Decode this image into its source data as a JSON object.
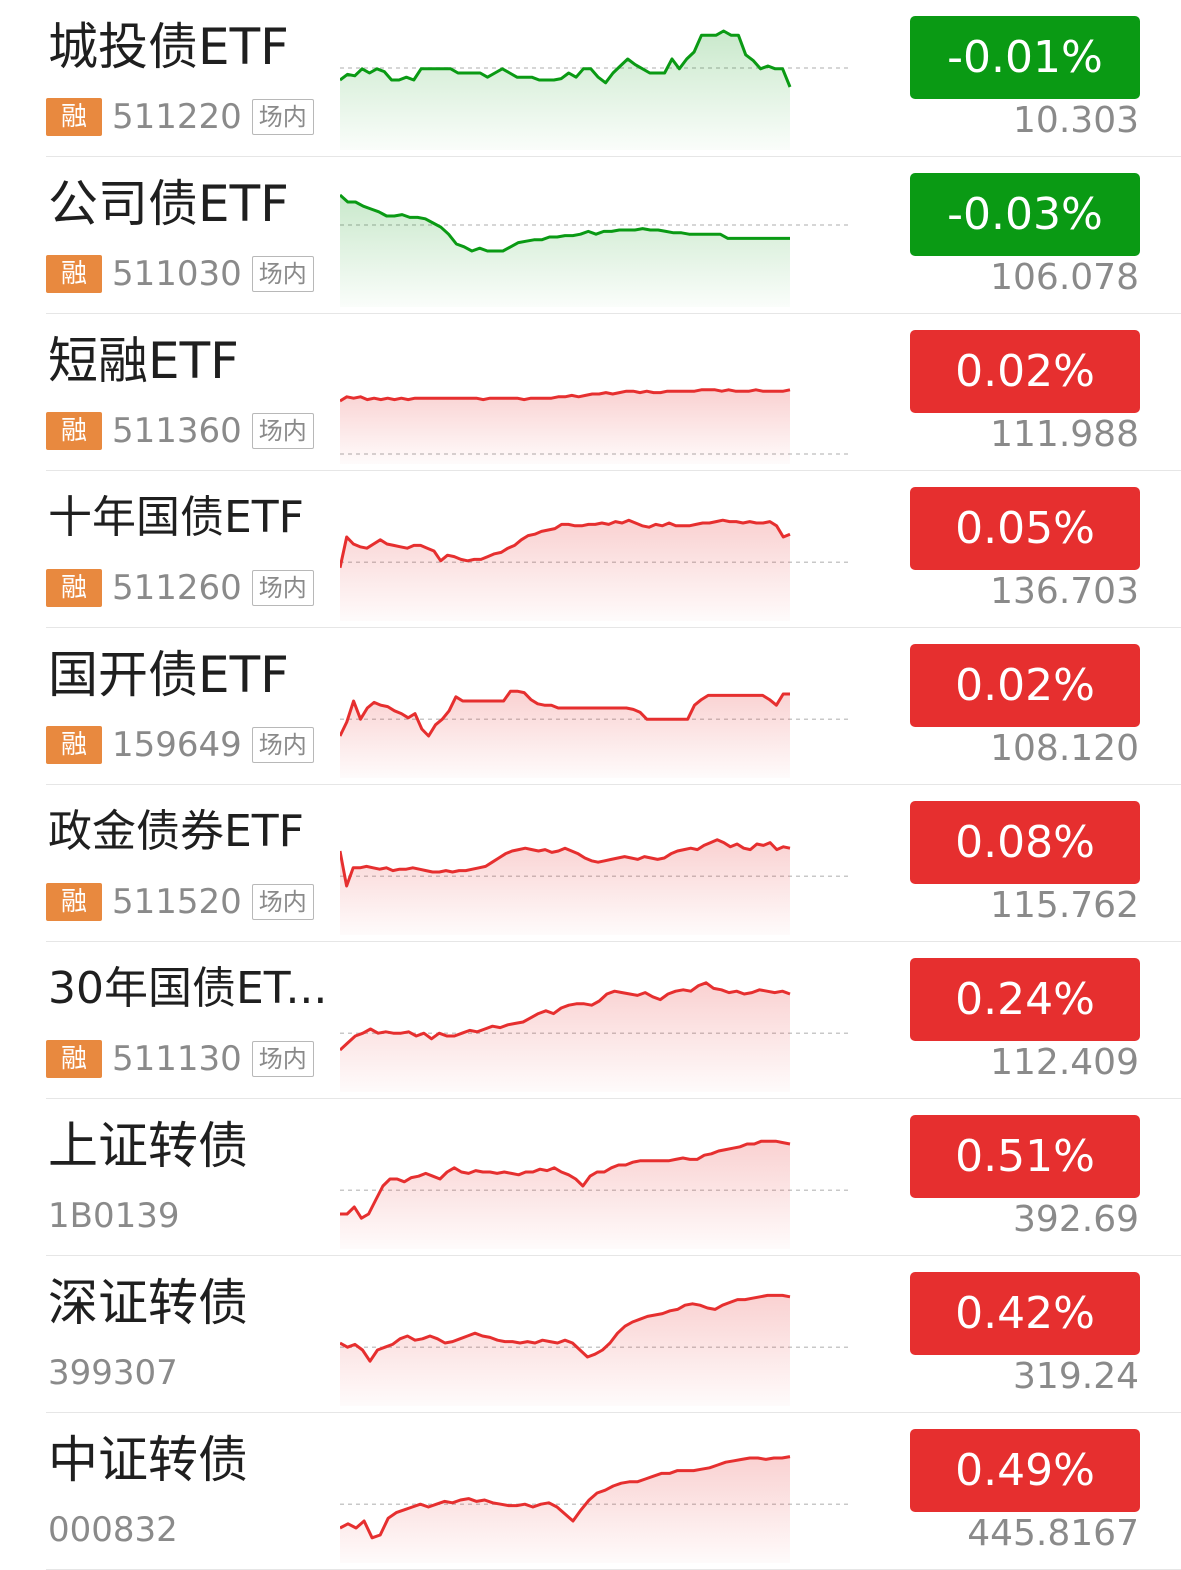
{
  "colors": {
    "up": "#e62f2f",
    "down": "#0a9a14",
    "muted": "#8a8a8a",
    "tag": "#e8893f"
  },
  "items": [
    {
      "name": "城投债ETF",
      "tag": "融",
      "code": "511220",
      "venue": "场内",
      "change": "-0.01%",
      "price": "10.303",
      "trend": "down",
      "spark": [
        50,
        54,
        53,
        58,
        55,
        58,
        56,
        50,
        50,
        52,
        50,
        58,
        58,
        58,
        58,
        58,
        55,
        55,
        55,
        55,
        52,
        55,
        58,
        55,
        52,
        52,
        52,
        50,
        50,
        50,
        51,
        55,
        52,
        58,
        58,
        52,
        48,
        55,
        60,
        65,
        61,
        58,
        55,
        55,
        55,
        65,
        58,
        65,
        70,
        82,
        82,
        82,
        85,
        82,
        82,
        68,
        64,
        58,
        60,
        58,
        58,
        45
      ]
    },
    {
      "name": "公司债ETF",
      "tag": "融",
      "code": "511030",
      "venue": "场内",
      "change": "-0.03%",
      "price": "106.078",
      "trend": "down",
      "spark": [
        80,
        75,
        75,
        72,
        70,
        68,
        65,
        65,
        66,
        64,
        64,
        63,
        60,
        57,
        52,
        45,
        43,
        40,
        42,
        40,
        40,
        40,
        43,
        46,
        47,
        48,
        48,
        50,
        50,
        51,
        51,
        52,
        54,
        52,
        54,
        54,
        55,
        55,
        55,
        56,
        55,
        55,
        54,
        53,
        53,
        52,
        52,
        52,
        52,
        52,
        49,
        49,
        49,
        49,
        49,
        49,
        49,
        49,
        49
      ]
    },
    {
      "name": "短融ETF",
      "tag": "融",
      "code": "511360",
      "venue": "场内",
      "change": "0.02%",
      "price": "111.988",
      "trend": "up",
      "spark": [
        45,
        48,
        47,
        48,
        46,
        47,
        46,
        47,
        46,
        47,
        46,
        47,
        47,
        47,
        47,
        47,
        47,
        47,
        47,
        47,
        47,
        46,
        47,
        47,
        47,
        47,
        47,
        46,
        47,
        47,
        47,
        47,
        48,
        48,
        49,
        48,
        49,
        50,
        50,
        51,
        50,
        51,
        52,
        52,
        51,
        52,
        51,
        51,
        52,
        52,
        52,
        52,
        52,
        53,
        53,
        53,
        52,
        53,
        52,
        52,
        52,
        53,
        52,
        52,
        52,
        52,
        53
      ]
    },
    {
      "name": "十年国债ETF",
      "tag": "融",
      "code": "511260",
      "venue": "场内",
      "change": "0.05%",
      "price": "136.703",
      "trend": "up",
      "spark": [
        38,
        60,
        55,
        53,
        52,
        55,
        58,
        55,
        54,
        53,
        52,
        54,
        54,
        52,
        50,
        43,
        47,
        46,
        44,
        43,
        44,
        44,
        46,
        48,
        49,
        52,
        54,
        58,
        61,
        62,
        64,
        65,
        66,
        69,
        69,
        68,
        68,
        69,
        69,
        70,
        69,
        71,
        70,
        72,
        70,
        68,
        67,
        69,
        68,
        70,
        68,
        68,
        68,
        69,
        70,
        70,
        71,
        72,
        71,
        71,
        70,
        71,
        70,
        70,
        71,
        68,
        60,
        62
      ]
    },
    {
      "name": "国开债ETF",
      "tag": "融",
      "code": "159649",
      "venue": "场内",
      "change": "0.02%",
      "price": "108.120",
      "trend": "up",
      "spark": [
        30,
        40,
        55,
        42,
        50,
        54,
        52,
        51,
        48,
        46,
        43,
        46,
        35,
        30,
        38,
        42,
        48,
        58,
        55,
        55,
        55,
        55,
        55,
        55,
        55,
        62,
        62,
        61,
        56,
        53,
        52,
        52,
        50,
        50,
        50,
        50,
        50,
        50,
        50,
        50,
        50,
        50,
        50,
        49,
        47,
        42,
        42,
        42,
        42,
        42,
        42,
        42,
        52,
        56,
        59,
        59,
        59,
        59,
        59,
        59,
        59,
        59,
        59,
        56,
        52,
        60,
        60
      ]
    },
    {
      "name": "政金债券ETF",
      "tag": "融",
      "code": "511520",
      "venue": "场内",
      "change": "0.08%",
      "price": "115.762",
      "trend": "up",
      "spark": [
        60,
        35,
        48,
        48,
        49,
        48,
        47,
        48,
        46,
        47,
        47,
        48,
        47,
        46,
        45,
        45,
        46,
        45,
        46,
        46,
        47,
        48,
        49,
        52,
        55,
        58,
        60,
        61,
        62,
        61,
        60,
        61,
        59,
        60,
        62,
        60,
        58,
        55,
        53,
        52,
        53,
        54,
        55,
        56,
        55,
        54,
        56,
        55,
        54,
        55,
        58,
        60,
        61,
        62,
        61,
        64,
        66,
        68,
        66,
        63,
        65,
        62,
        61,
        65,
        64,
        66,
        61,
        63,
        62
      ]
    },
    {
      "name": "30年国债ET...",
      "tag": "融",
      "code": "511130",
      "venue": "场内",
      "change": "0.24%",
      "price": "112.409",
      "trend": "up",
      "spark": [
        30,
        35,
        40,
        42,
        45,
        42,
        43,
        42,
        42,
        43,
        40,
        42,
        38,
        42,
        40,
        40,
        42,
        44,
        43,
        45,
        47,
        46,
        48,
        49,
        50,
        53,
        56,
        58,
        56,
        60,
        62,
        63,
        63,
        62,
        65,
        70,
        72,
        71,
        70,
        69,
        71,
        68,
        66,
        70,
        72,
        73,
        72,
        76,
        78,
        74,
        73,
        71,
        72,
        70,
        71,
        73,
        72,
        71,
        72,
        70
      ]
    },
    {
      "name": "上证转债",
      "tag": "",
      "code": "1B0139",
      "venue": "",
      "change": "0.51%",
      "price": "392.69",
      "trend": "up",
      "spark": [
        25,
        25,
        30,
        22,
        25,
        35,
        45,
        50,
        50,
        48,
        51,
        52,
        54,
        52,
        50,
        55,
        58,
        55,
        54,
        56,
        55,
        55,
        54,
        55,
        54,
        53,
        55,
        55,
        57,
        56,
        58,
        55,
        53,
        50,
        45,
        52,
        55,
        55,
        58,
        60,
        60,
        62,
        63,
        63,
        63,
        63,
        63,
        64,
        65,
        64,
        64,
        67,
        68,
        70,
        71,
        72,
        73,
        75,
        75,
        77,
        77,
        77,
        76,
        75
      ]
    },
    {
      "name": "深证转债",
      "tag": "",
      "code": "399307",
      "venue": "",
      "change": "0.42%",
      "price": "319.24",
      "trend": "up",
      "spark": [
        45,
        42,
        44,
        40,
        32,
        40,
        42,
        44,
        48,
        50,
        47,
        48,
        50,
        48,
        45,
        46,
        48,
        50,
        52,
        50,
        49,
        47,
        46,
        46,
        45,
        46,
        45,
        47,
        46,
        45,
        47,
        45,
        40,
        35,
        37,
        40,
        45,
        52,
        57,
        60,
        62,
        64,
        65,
        66,
        68,
        69,
        72,
        73,
        72,
        70,
        69,
        72,
        74,
        76,
        76,
        77,
        78,
        79,
        79,
        79,
        78
      ]
    },
    {
      "name": "中证转债",
      "tag": "",
      "code": "000832",
      "venue": "",
      "change": "0.49%",
      "price": "445.8167",
      "trend": "up",
      "spark": [
        25,
        28,
        25,
        30,
        18,
        20,
        32,
        36,
        38,
        40,
        42,
        40,
        42,
        44,
        43,
        45,
        46,
        44,
        45,
        43,
        42,
        41,
        41,
        42,
        40,
        42,
        43,
        40,
        35,
        30,
        38,
        45,
        50,
        52,
        55,
        57,
        58,
        58,
        60,
        62,
        64,
        64,
        66,
        66,
        66,
        67,
        68,
        70,
        72,
        73,
        74,
        75,
        75,
        74,
        75,
        75,
        76
      ]
    }
  ]
}
